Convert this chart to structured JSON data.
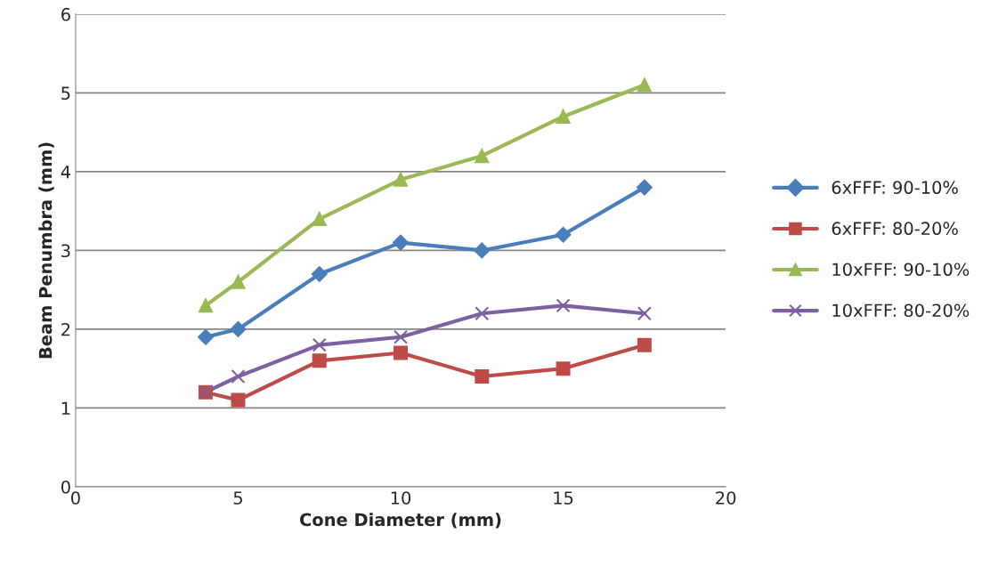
{
  "chart_data": {
    "type": "line",
    "xlabel": "Cone Diameter (mm)",
    "ylabel": "Beam Penumbra (mm)",
    "x": [
      4,
      5,
      7.5,
      10,
      12.5,
      15,
      17.5
    ],
    "xlim": [
      0,
      20
    ],
    "xticks": [
      0,
      5,
      10,
      15,
      20
    ],
    "ylim": [
      0,
      6
    ],
    "yticks": [
      0,
      1,
      2,
      3,
      4,
      5,
      6
    ],
    "grid": "y",
    "legend": "right",
    "line_style": "solid",
    "series": [
      {
        "name": "6xFFF: 90-10%",
        "color": "#4a7ebb",
        "marker": "diamond",
        "values": [
          1.9,
          2.0,
          2.7,
          3.1,
          3.0,
          3.2,
          3.8
        ]
      },
      {
        "name": "6xFFF: 80-20%",
        "color": "#be4b48",
        "marker": "square",
        "values": [
          1.2,
          1.1,
          1.6,
          1.7,
          1.4,
          1.5,
          1.8
        ]
      },
      {
        "name": "10xFFF: 90-10%",
        "color": "#98b954",
        "marker": "triangle",
        "values": [
          2.3,
          2.6,
          3.4,
          3.9,
          4.2,
          4.7,
          5.1
        ]
      },
      {
        "name": "10xFFF: 80-20%",
        "color": "#7d60a0",
        "marker": "cross",
        "values": [
          1.2,
          1.4,
          1.8,
          1.9,
          2.2,
          2.3,
          2.2
        ]
      }
    ]
  }
}
